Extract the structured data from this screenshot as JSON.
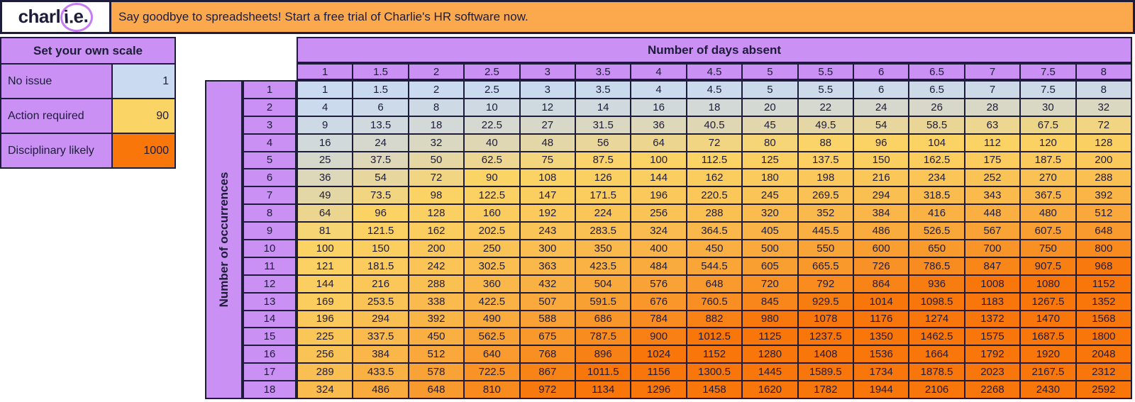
{
  "topbar": {
    "logo_prefix": "charl",
    "logo_circled": "i.e.",
    "banner_message": "Say goodbye to spreadsheets! Start a free trial of Charlie's HR software now."
  },
  "scale_panel": {
    "title": "Set your own scale",
    "rows": [
      {
        "label": "No issue",
        "value": "1",
        "color": "#C9DAF1"
      },
      {
        "label": "Action required",
        "value": "90",
        "color": "#FBD466"
      },
      {
        "label": "Disciplinary likely",
        "value": "1000",
        "color": "#F8760A"
      }
    ]
  },
  "matrix": {
    "columns_title": "Number of days absent",
    "rows_title": "Number of occurrences"
  },
  "colors": {
    "purple": "#CB90F3",
    "banner_orange": "#FBA94C",
    "ink": "#1D1C3B",
    "logo_circle_purple": "#C77DF2",
    "scale_low": "#C9DAF1",
    "scale_mid": "#FBD466",
    "scale_high": "#F8760A"
  },
  "chart_data": {
    "type": "heatmap",
    "xlabel": "Number of days absent",
    "ylabel": "Number of occurrences",
    "x": [
      1,
      1.5,
      2,
      2.5,
      3,
      3.5,
      4,
      4.5,
      5,
      5.5,
      6,
      6.5,
      7,
      7.5,
      8
    ],
    "y": [
      1,
      2,
      3,
      4,
      5,
      6,
      7,
      8,
      9,
      10,
      11,
      12,
      13,
      14,
      15,
      16,
      17,
      18
    ],
    "values": [
      [
        1,
        1.5,
        2,
        2.5,
        3,
        3.5,
        4,
        4.5,
        5,
        5.5,
        6,
        6.5,
        7,
        7.5,
        8
      ],
      [
        4,
        6,
        8,
        10,
        12,
        14,
        16,
        18,
        20,
        22,
        24,
        26,
        28,
        30,
        32
      ],
      [
        9,
        13.5,
        18,
        22.5,
        27,
        31.5,
        36,
        40.5,
        45,
        49.5,
        54,
        58.5,
        63,
        67.5,
        72
      ],
      [
        16,
        24,
        32,
        40,
        48,
        56,
        64,
        72,
        80,
        88,
        96,
        104,
        112,
        120,
        128
      ],
      [
        25,
        37.5,
        50,
        62.5,
        75,
        87.5,
        100,
        112.5,
        125,
        137.5,
        150,
        162.5,
        175,
        187.5,
        200
      ],
      [
        36,
        54,
        72,
        90,
        108,
        126,
        144,
        162,
        180,
        198,
        216,
        234,
        252,
        270,
        288
      ],
      [
        49,
        73.5,
        98,
        122.5,
        147,
        171.5,
        196,
        220.5,
        245,
        269.5,
        294,
        318.5,
        343,
        367.5,
        392
      ],
      [
        64,
        96,
        128,
        160,
        192,
        224,
        256,
        288,
        320,
        352,
        384,
        416,
        448,
        480,
        512
      ],
      [
        81,
        121.5,
        162,
        202.5,
        243,
        283.5,
        324,
        364.5,
        405,
        445.5,
        486,
        526.5,
        567,
        607.5,
        648
      ],
      [
        100,
        150,
        200,
        250,
        300,
        350,
        400,
        450,
        500,
        550,
        600,
        650,
        700,
        750,
        800
      ],
      [
        121,
        181.5,
        242,
        302.5,
        363,
        423.5,
        484,
        544.5,
        605,
        665.5,
        726,
        786.5,
        847,
        907.5,
        968
      ],
      [
        144,
        216,
        288,
        360,
        432,
        504,
        576,
        648,
        720,
        792,
        864,
        936,
        1008,
        1080,
        1152
      ],
      [
        169,
        253.5,
        338,
        422.5,
        507,
        591.5,
        676,
        760.5,
        845,
        929.5,
        1014,
        1098.5,
        1183,
        1267.5,
        1352
      ],
      [
        196,
        294,
        392,
        490,
        588,
        686,
        784,
        882,
        980,
        1078,
        1176,
        1274,
        1372,
        1470,
        1568
      ],
      [
        225,
        337.5,
        450,
        562.5,
        675,
        787.5,
        900,
        1012.5,
        1125,
        1237.5,
        1350,
        1462.5,
        1575,
        1687.5,
        1800
      ],
      [
        256,
        384,
        512,
        640,
        768,
        896,
        1024,
        1152,
        1280,
        1408,
        1536,
        1664,
        1792,
        1920,
        2048
      ],
      [
        289,
        433.5,
        578,
        722.5,
        867,
        1011.5,
        1156,
        1300.5,
        1445,
        1589.5,
        1734,
        1878.5,
        2023,
        2167.5,
        2312
      ],
      [
        324,
        486,
        648,
        810,
        972,
        1134,
        1296,
        1458,
        1620,
        1782,
        1944,
        2106,
        2268,
        2430,
        2592
      ]
    ],
    "color_scale": {
      "anchors": [
        {
          "value": 1,
          "color": "#C9DAF1",
          "label": "No issue"
        },
        {
          "value": 90,
          "color": "#FBD466",
          "label": "Action required"
        },
        {
          "value": 1000,
          "color": "#F8760A",
          "label": "Disciplinary likely"
        }
      ]
    },
    "legend_position": "left-panel",
    "grid": true
  }
}
